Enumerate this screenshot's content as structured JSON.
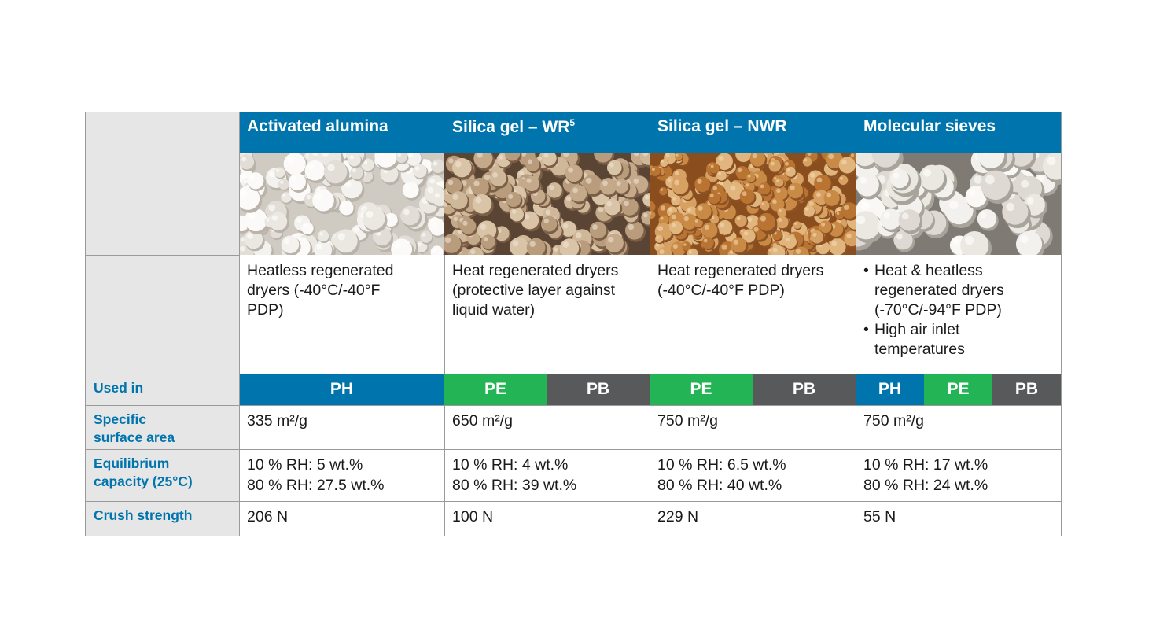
{
  "columns": [
    {
      "title": "Activated alumina",
      "sup": "",
      "description": [
        "Heatless regenerated",
        "dryers (-40°C/-40°F",
        "PDP)"
      ],
      "bullets": [],
      "used_in": [
        "PH"
      ],
      "surface_area": "335 m²/g",
      "capacity": [
        "10 % RH: 5 wt.%",
        "80 % RH: 27.5 wt.%"
      ],
      "crush": "206 N"
    },
    {
      "title": "Silica gel – WR",
      "sup": "5",
      "description": [
        "Heat regenerated dryers",
        "(protective layer against",
        "liquid water)"
      ],
      "bullets": [],
      "used_in": [
        "PE",
        "PB"
      ],
      "surface_area": "650 m²/g",
      "capacity": [
        "10 % RH: 4 wt.%",
        "80 % RH: 39 wt.%"
      ],
      "crush": "100 N"
    },
    {
      "title": "Silica gel – NWR",
      "sup": "",
      "description": [
        "Heat regenerated dryers",
        "(-40°C/-40°F PDP)"
      ],
      "bullets": [],
      "used_in": [
        "PE",
        "PB"
      ],
      "surface_area": "750 m²/g",
      "capacity": [
        "10 % RH: 6.5 wt.%",
        "80 % RH: 40 wt.%"
      ],
      "crush": "229 N"
    },
    {
      "title": "Molecular sieves",
      "sup": "",
      "description": [],
      "bullets": [
        [
          "Heat & heatless",
          "regenerated dryers",
          "(-70°C/-94°F PDP)"
        ],
        [
          "High air inlet",
          "temperatures"
        ]
      ],
      "used_in": [
        "PH",
        "PE",
        "PB"
      ],
      "surface_area": "750 m²/g",
      "capacity": [
        "10 % RH: 17 wt.%",
        "80 % RH: 24 wt.%"
      ],
      "crush": "55 N"
    }
  ],
  "row_labels": {
    "used_in": "Used in",
    "surface_area": [
      "Specific",
      "surface area"
    ],
    "capacity": [
      "Equilibrium",
      "capacity (25°C)"
    ],
    "crush": "Crush strength"
  },
  "colors": {
    "blue": "#0075ad",
    "green": "#22b455",
    "grey": "#58595b",
    "label_bg": "#e6e6e6"
  },
  "photos": [
    "white-alumina-beads",
    "beige-silica-gel-beads",
    "amber-silica-gel-beads",
    "white-molecular-sieve-beads"
  ]
}
